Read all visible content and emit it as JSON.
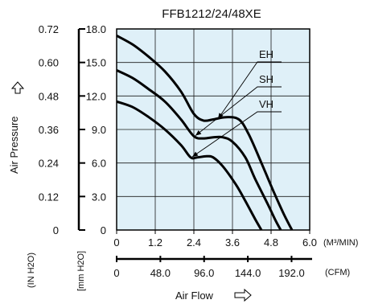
{
  "chart_data": {
    "type": "line",
    "title": "FFB1212/24/48XE",
    "colors": {
      "plot_background": "#dff0f8",
      "grid": "#1a1a1a",
      "curve": "#000000"
    },
    "grid": true,
    "y_axis": {
      "label": "Air Pressure",
      "label_icon": "arrow-up-outline-icon",
      "primary": {
        "unit_label": "[mm H2O]",
        "ticks": [
          "0",
          "3.0",
          "6.0",
          "9.0",
          "12.0",
          "15.0",
          "18.0"
        ],
        "ylim": [
          0,
          18
        ]
      },
      "secondary": {
        "unit_label": "(IN H2O)",
        "ticks": [
          "0",
          "0.12",
          "0.24",
          "0.36",
          "0.48",
          "0.60",
          "0.72"
        ],
        "ylim": [
          0,
          0.72
        ]
      }
    },
    "x_axis": {
      "label": "Air Flow",
      "label_icon": "arrow-right-outline-icon",
      "primary": {
        "unit_label": "(M³/MIN)",
        "ticks": [
          "0",
          "1.2",
          "2.4",
          "3.6",
          "4.8",
          "6.0"
        ],
        "xlim": [
          0,
          6
        ]
      },
      "secondary": {
        "unit_label": "(CFM)",
        "ticks": [
          "0",
          "48.0",
          "96.0",
          "144.0",
          "192.0"
        ],
        "xlim": [
          0,
          211.9
        ]
      }
    },
    "series": [
      {
        "name": "EH",
        "points": [
          [
            0,
            17.4
          ],
          [
            0.5,
            16.6
          ],
          [
            1.0,
            15.5
          ],
          [
            1.5,
            14.2
          ],
          [
            2.0,
            12.4
          ],
          [
            2.4,
            10.4
          ],
          [
            2.7,
            9.8
          ],
          [
            3.0,
            9.9
          ],
          [
            3.4,
            10.1
          ],
          [
            3.8,
            9.9
          ],
          [
            4.1,
            8.6
          ],
          [
            4.5,
            6.0
          ],
          [
            4.9,
            3.3
          ],
          [
            5.2,
            1.4
          ],
          [
            5.45,
            0
          ]
        ]
      },
      {
        "name": "SH",
        "points": [
          [
            0,
            14.3
          ],
          [
            0.5,
            13.6
          ],
          [
            1.0,
            12.6
          ],
          [
            1.5,
            11.5
          ],
          [
            2.0,
            9.9
          ],
          [
            2.4,
            8.4
          ],
          [
            2.7,
            8.2
          ],
          [
            3.0,
            8.3
          ],
          [
            3.3,
            8.3
          ],
          [
            3.6,
            7.9
          ],
          [
            4.0,
            6.5
          ],
          [
            4.3,
            4.6
          ],
          [
            4.7,
            2.3
          ],
          [
            4.95,
            0.8
          ],
          [
            5.1,
            0
          ]
        ]
      },
      {
        "name": "VH",
        "points": [
          [
            0,
            11.5
          ],
          [
            0.5,
            11.0
          ],
          [
            1.0,
            10.1
          ],
          [
            1.5,
            9.0
          ],
          [
            2.0,
            7.6
          ],
          [
            2.3,
            6.5
          ],
          [
            2.5,
            6.5
          ],
          [
            2.8,
            6.6
          ],
          [
            3.0,
            6.5
          ],
          [
            3.3,
            5.7
          ],
          [
            3.7,
            4.1
          ],
          [
            4.0,
            2.6
          ],
          [
            4.3,
            1.0
          ],
          [
            4.5,
            0
          ]
        ]
      }
    ],
    "annotations": [
      {
        "text": "EH",
        "points_to_series": "EH"
      },
      {
        "text": "SH",
        "points_to_series": "SH"
      },
      {
        "text": "VH",
        "points_to_series": "VH"
      }
    ]
  }
}
